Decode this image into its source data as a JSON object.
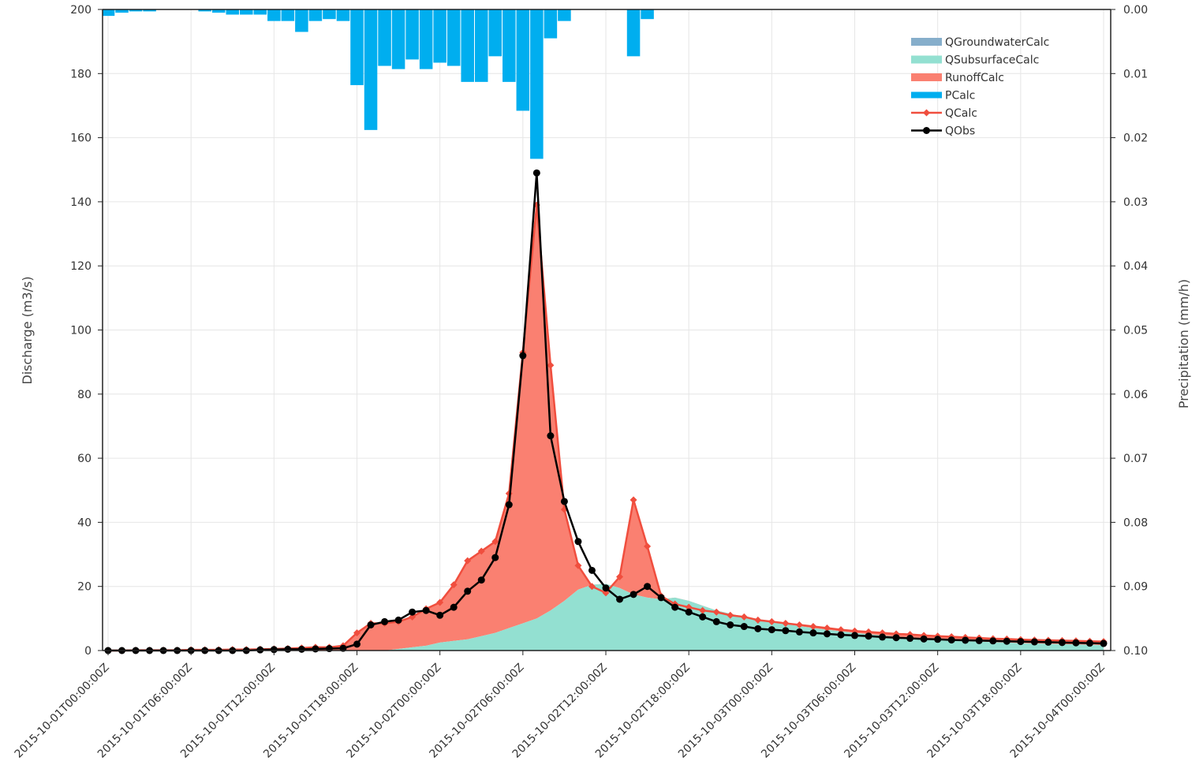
{
  "chart_data": {
    "type": "line",
    "ylabel_left": "Discharge (m3/s)",
    "ylabel_right": "Precipitation (mm/h)",
    "ylim_left": [
      0,
      200
    ],
    "ylim_right_inverted": [
      0.0,
      0.1
    ],
    "y_ticks_left": [
      "0",
      "20",
      "40",
      "60",
      "80",
      "100",
      "120",
      "140",
      "160",
      "180",
      "200"
    ],
    "y_ticks_right": [
      "0.10",
      "0.09",
      "0.08",
      "0.07",
      "0.06",
      "0.05",
      "0.04",
      "0.03",
      "0.02",
      "0.01",
      "0.00"
    ],
    "x_tick_labels": [
      "2015-10-01T00:00:00Z",
      "2015-10-01T06:00:00Z",
      "2015-10-01T12:00:00Z",
      "2015-10-01T18:00:00Z",
      "2015-10-02T00:00:00Z",
      "2015-10-02T06:00:00Z",
      "2015-10-02T12:00:00Z",
      "2015-10-02T18:00:00Z",
      "2015-10-03T00:00:00Z",
      "2015-10-03T06:00:00Z",
      "2015-10-03T12:00:00Z",
      "2015-10-03T18:00:00Z",
      "2015-10-04T00:00:00Z"
    ],
    "x_start": "2015-10-01T00:00:00Z",
    "x_step": "1 hour",
    "grid": true,
    "legend_position": "top-right",
    "legend": [
      {
        "name": "QGroundwaterCalc",
        "color": "#86aecb",
        "style": "area"
      },
      {
        "name": "QSubsurfaceCalc",
        "color": "#93e0d1",
        "style": "area"
      },
      {
        "name": "RunoffCalc",
        "color": "#fa8071",
        "style": "area"
      },
      {
        "name": "PCalc",
        "color": "#00aeef",
        "style": "bar"
      },
      {
        "name": "QCalc",
        "color": "#f04e3e",
        "style": "line-diamond"
      },
      {
        "name": "QObs",
        "color": "#000000",
        "style": "line-circle"
      }
    ],
    "series": [
      {
        "name": "QSubsurfaceCalc",
        "values": [
          0,
          0,
          0,
          0,
          0,
          0,
          0,
          0,
          0,
          0,
          0,
          0,
          0,
          0,
          0,
          0,
          0,
          0,
          0,
          0,
          0,
          0.5,
          1,
          1.5,
          2.5,
          3,
          3.5,
          4.5,
          5.5,
          7,
          8.5,
          10,
          12.5,
          15.5,
          19,
          20.5,
          20.8,
          19.5,
          17.5,
          16.5,
          16,
          16.5,
          15.5,
          14,
          12.5,
          11.5,
          10.5,
          9.8,
          9,
          8.3,
          7.6,
          7,
          6.5,
          6,
          5.5,
          5.1,
          4.7,
          4.3,
          4,
          3.7,
          3.4,
          3.2,
          3,
          2.8,
          2.6,
          2.5,
          2.3,
          2.2,
          2.1,
          2,
          1.9,
          1.8,
          1.7
        ]
      },
      {
        "name": "QCalc",
        "values": [
          0,
          0,
          0.1,
          0.1,
          0.1,
          0.1,
          0.2,
          0.2,
          0.2,
          0.3,
          0.3,
          0.4,
          0.5,
          0.6,
          0.8,
          1,
          1,
          1.5,
          5.5,
          8.5,
          8.5,
          9,
          10.5,
          13,
          15,
          20.5,
          28,
          31,
          34,
          49,
          93,
          139,
          89,
          44,
          26.5,
          20,
          18,
          23,
          47,
          32.5,
          17,
          14.5,
          13.5,
          12.5,
          12,
          11,
          10.5,
          9.5,
          9,
          8.5,
          8,
          7.5,
          7,
          6.5,
          6.1,
          5.8,
          5.5,
          5.2,
          5,
          4.7,
          4.5,
          4.3,
          4.1,
          3.9,
          3.7,
          3.6,
          3.4,
          3.3,
          3.2,
          3.1,
          3,
          2.9,
          2.8
        ]
      },
      {
        "name": "QObs",
        "values": [
          0,
          0,
          0,
          0,
          0,
          0,
          0,
          0,
          0,
          0,
          0,
          0.2,
          0.3,
          0.4,
          0.4,
          0.5,
          0.6,
          0.7,
          2,
          8,
          9,
          9.5,
          12,
          12.5,
          11,
          13.5,
          18.5,
          22,
          29,
          45.5,
          92,
          149,
          67,
          46.5,
          34,
          25,
          19.5,
          16,
          17.5,
          20,
          16.5,
          13.5,
          12,
          10.5,
          9,
          8,
          7.5,
          6.8,
          6.5,
          6.2,
          5.8,
          5.5,
          5.2,
          4.9,
          4.7,
          4.5,
          4.2,
          4,
          3.8,
          3.6,
          3.5,
          3.3,
          3.2,
          3.1,
          3,
          2.9,
          2.8,
          2.7,
          2.6,
          2.5,
          2.4,
          2.3,
          2.2
        ]
      },
      {
        "name": "PCalc",
        "values": [
          0.001,
          0.0005,
          0.0003,
          0.0003,
          0,
          0,
          0,
          0.0003,
          0.0005,
          0.0008,
          0.0008,
          0.0008,
          0.0018,
          0.0018,
          0.0035,
          0.0018,
          0.0015,
          0.0018,
          0.0118,
          0.0188,
          0.0088,
          0.0093,
          0.0078,
          0.0093,
          0.0083,
          0.0088,
          0.0113,
          0.0113,
          0.0073,
          0.0113,
          0.0158,
          0.0233,
          0.0045,
          0.0018,
          0,
          0,
          0,
          0,
          0.0073,
          0.0015
        ]
      }
    ]
  }
}
